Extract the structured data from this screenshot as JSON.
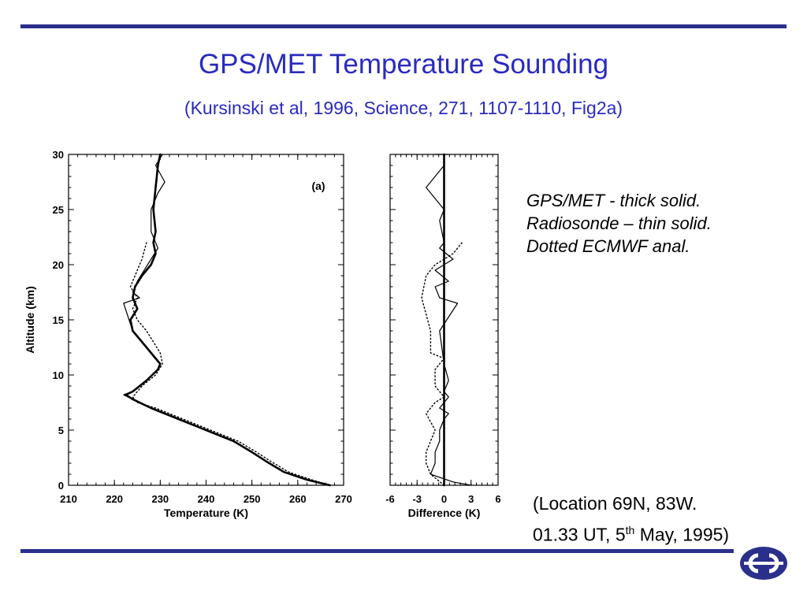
{
  "slide": {
    "title": "GPS/MET Temperature Sounding",
    "subtitle": "(Kursinski et al, 1996, Science, 271, 1107-1110, Fig2a)",
    "legend": [
      "GPS/MET - thick solid.",
      "Radiosonde – thin solid.",
      "Dotted ECMWF anal."
    ],
    "location_line1": "(Location 69N, 83W.",
    "location_line2_prefix": "01.33 UT, 5",
    "location_line2_sup": "th",
    "location_line2_suffix": " May, 1995)",
    "accent_color": "#2b2f8c",
    "title_color": "#2a2ac0",
    "logo_icon": "ecmwf-logo"
  },
  "chart_data": [
    {
      "type": "line",
      "panel_label": "(a)",
      "xlabel": "Temperature (K)",
      "ylabel": "Altitude (km)",
      "xlim": [
        210,
        270
      ],
      "ylim": [
        0,
        30
      ],
      "xticks": [
        210,
        220,
        230,
        240,
        250,
        260,
        270
      ],
      "yticks": [
        0,
        5,
        10,
        15,
        20,
        25,
        30
      ],
      "grid": false,
      "series": [
        {
          "style": "thick-solid",
          "x": [
            267,
            262,
            257,
            253,
            250,
            246,
            240,
            234,
            228,
            224,
            222.5,
            224,
            227,
            229.5,
            230,
            228,
            226,
            224,
            223.5,
            225,
            224,
            224.5,
            226,
            228,
            229,
            228.5,
            229,
            228.5,
            229,
            229.5,
            230
          ],
          "y": [
            0,
            0.5,
            1.2,
            2.2,
            3,
            4,
            5,
            6,
            7,
            7.8,
            8.2,
            8.5,
            9.5,
            10.5,
            11,
            12,
            13,
            14,
            15,
            16,
            17,
            18,
            19,
            20,
            21,
            22,
            23,
            25,
            27,
            29,
            30
          ]
        },
        {
          "style": "thin-solid",
          "x": [
            267,
            262,
            257,
            253,
            250,
            246,
            240,
            234,
            228,
            224,
            222,
            224.5,
            227,
            229.5,
            230,
            228,
            226,
            224,
            222,
            225.5,
            224,
            225,
            226.5,
            228,
            229.5,
            228,
            228,
            229.5,
            231,
            229,
            230.5
          ],
          "y": [
            0,
            0.5,
            1.2,
            2.2,
            3,
            4,
            5,
            6,
            7,
            7.8,
            8.2,
            8.6,
            9.5,
            10.5,
            11,
            12,
            13,
            14,
            16.5,
            17,
            17.5,
            18.5,
            19.5,
            20.5,
            21.5,
            23,
            25,
            26.5,
            27.5,
            29,
            30
          ]
        },
        {
          "style": "dotted",
          "x": [
            267,
            263,
            258,
            254,
            251,
            247,
            241,
            235,
            229,
            225,
            224,
            226,
            229,
            230.5,
            230,
            228.5,
            227,
            225,
            224,
            225,
            223.5,
            224.5,
            226,
            227
          ],
          "y": [
            0,
            0.5,
            1.2,
            2.2,
            3,
            4,
            5,
            6,
            7,
            7.5,
            8,
            9,
            10,
            11,
            12,
            13,
            14,
            15,
            16,
            17,
            18,
            19,
            20.5,
            22
          ]
        }
      ]
    },
    {
      "type": "line",
      "xlabel": "Difference (K)",
      "xlim": [
        -6,
        6
      ],
      "ylim": [
        0,
        30
      ],
      "xticks": [
        -6,
        -3,
        0,
        3,
        6
      ],
      "grid": false,
      "series": [
        {
          "style": "thick-solid",
          "x": [
            0,
            0,
            0,
            0,
            0
          ],
          "y": [
            0,
            7.5,
            15,
            22.5,
            30
          ]
        },
        {
          "style": "thin-solid",
          "x": [
            3,
            1,
            -1.5,
            -1,
            -1,
            -0.5,
            -0.5,
            0,
            0.5,
            -0.5,
            0.5,
            0,
            0.5,
            0,
            -0.5,
            1.5,
            -0.5,
            -1,
            0.5,
            -1,
            1,
            -0.5,
            0,
            -0.5,
            0,
            -2,
            0,
            0,
            -1,
            0.5
          ],
          "y": [
            0,
            0.3,
            1,
            2,
            3,
            4,
            5,
            6,
            6.5,
            7,
            8,
            8.5,
            9.5,
            11,
            14,
            16.5,
            17,
            18,
            18.5,
            19.5,
            20.5,
            21.5,
            22,
            24,
            25,
            27,
            29,
            30,
            30,
            30
          ]
        },
        {
          "style": "dotted",
          "x": [
            0,
            -1.5,
            -2,
            -2,
            -1.5,
            -1,
            -2,
            -1,
            0,
            -1,
            -1,
            0,
            -1.5,
            -1.5,
            -2,
            -2.5,
            -2,
            -1,
            1,
            2
          ],
          "y": [
            0,
            1,
            2,
            3,
            4,
            5,
            6.5,
            7.5,
            8,
            9,
            10.5,
            11.5,
            12,
            14,
            15.5,
            17,
            19,
            20,
            21,
            22
          ]
        }
      ]
    }
  ]
}
